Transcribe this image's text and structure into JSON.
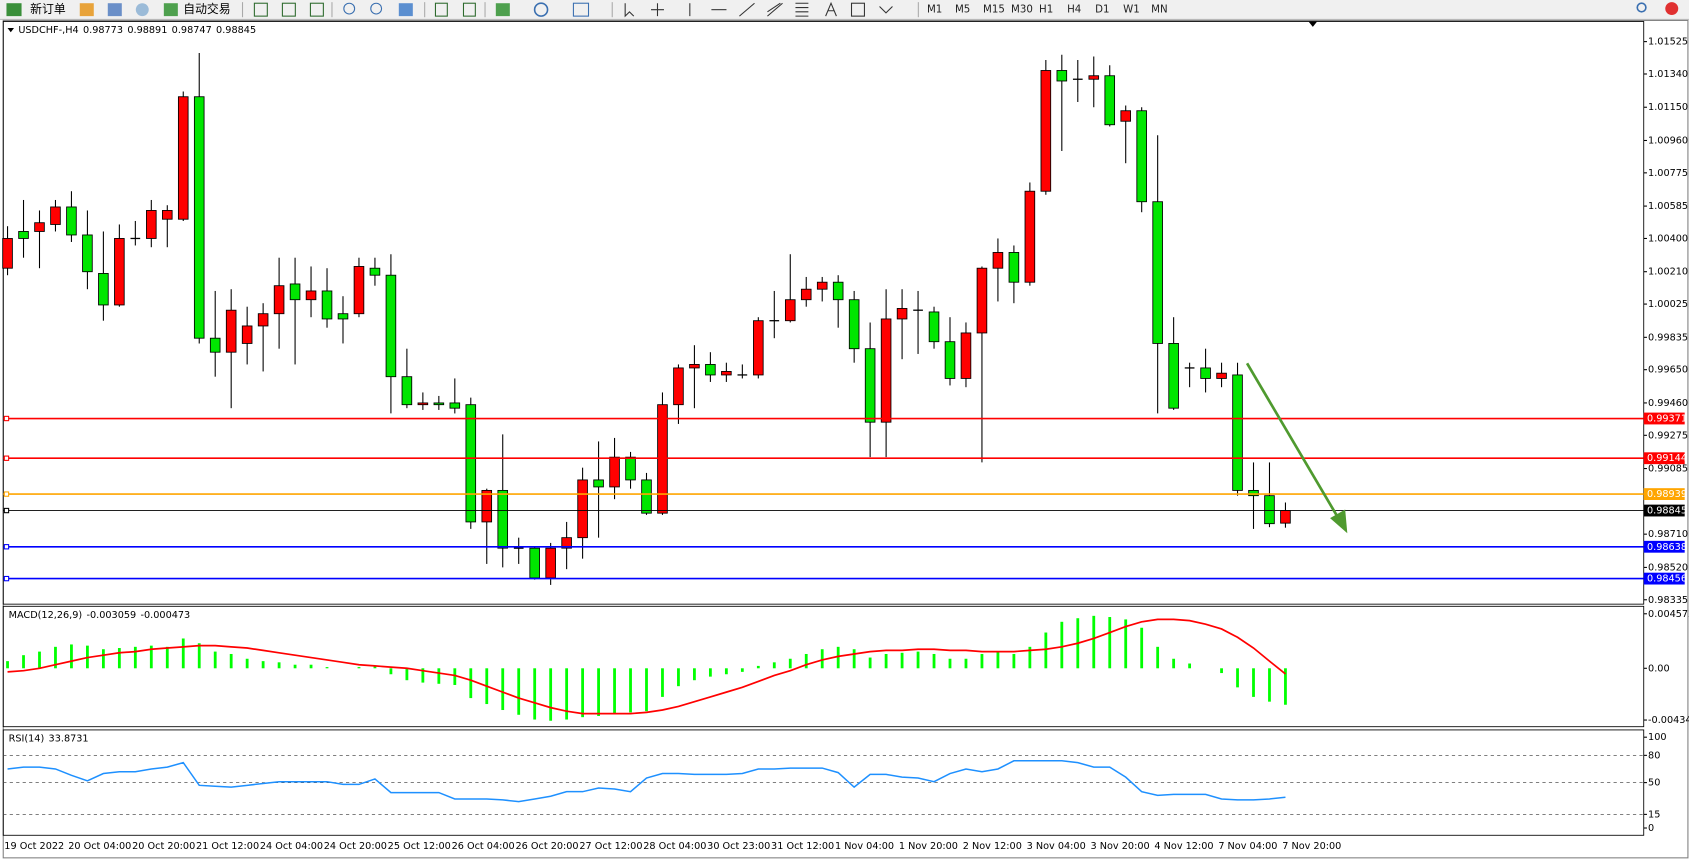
{
  "toolbar": {
    "new_order": "新订单",
    "auto_trading": "自动交易",
    "timeframes": [
      "M1",
      "M5",
      "M15",
      "M30",
      "H1",
      "H4",
      "D1",
      "W1",
      "MN"
    ]
  },
  "chart_data": [
    {
      "type": "candlestick",
      "title": "USDCHF-,H4",
      "up_color": "#ff0000",
      "down_color": "#00e600",
      "categories": [
        "19 Oct 2022",
        null,
        null,
        null,
        "20 Oct 04:00",
        null,
        null,
        null,
        "20 Oct 20:00",
        null,
        null,
        null,
        "21 Oct 12:00",
        null,
        null,
        null,
        "24 Oct 04:00",
        null,
        null,
        null,
        "24 Oct 20:00",
        null,
        null,
        null,
        "25 Oct 12:00",
        null,
        null,
        null,
        "26 Oct 04:00",
        null,
        null,
        null,
        "26 Oct 20:00",
        null,
        null,
        null,
        "27 Oct 12:00",
        null,
        null,
        null,
        "28 Oct 04:00",
        null,
        null,
        null,
        "30 Oct 23:00",
        null,
        null,
        null,
        "31 Oct 12:00",
        null,
        null,
        null,
        "1 Nov 04:00",
        null,
        null,
        null,
        "1 Nov 20:00",
        null,
        null,
        null,
        "2 Nov 12:00",
        null,
        null,
        null,
        "3 Nov 04:00",
        null,
        null,
        null,
        "3 Nov 20:00",
        null,
        null,
        null,
        "4 Nov 12:00",
        null,
        null,
        null,
        "7 Nov 04:00",
        null,
        null,
        null,
        "7 Nov 20:00"
      ],
      "open": [
        1.0023,
        1.0044,
        1.0044,
        1.0048,
        1.0058,
        1.0042,
        1.002,
        1.0002,
        1.004,
        1.004,
        1.0051,
        1.0051,
        1.0121,
        0.9983,
        0.9975,
        0.998,
        0.999,
        0.9997,
        1.0014,
        1.0005,
        1.001,
        0.9997,
        0.9997,
        1.0023,
        1.0019,
        0.9961,
        0.9945,
        0.9946,
        0.9946,
        0.9945,
        0.9878,
        0.9896,
        0.9863,
        0.9863,
        0.9846,
        0.9863,
        0.9869,
        0.9902,
        0.9898,
        0.9915,
        0.9902,
        0.9883,
        0.9945,
        0.9966,
        0.9968,
        0.9962,
        0.9962,
        0.9962,
        0.9993,
        0.9993,
        1.0005,
        1.0011,
        1.0015,
        1.0005,
        0.9977,
        0.9935,
        0.9994,
        0.9999,
        0.9998,
        0.9981,
        0.996,
        0.9986,
        1.0023,
        1.0032,
        1.0015,
        1.0067,
        1.0136,
        1.0131,
        1.0131,
        1.0133,
        1.0107,
        1.0113,
        1.0061,
        0.998,
        0.9966,
        0.9966,
        0.996,
        0.9962,
        0.9896,
        0.9893,
        0.98773
      ],
      "high": [
        1.0047,
        1.0062,
        1.0056,
        1.0062,
        1.0067,
        1.0056,
        1.0044,
        1.0048,
        1.005,
        1.0062,
        1.0059,
        1.0124,
        1.0146,
        1.001,
        1.0011,
        1.0001,
        1.0003,
        1.0029,
        1.0029,
        1.0024,
        1.0023,
        1.0007,
        1.0029,
        1.0029,
        1.0031,
        0.9977,
        0.9952,
        0.995,
        0.996,
        0.9949,
        0.9897,
        0.9928,
        0.9869,
        0.9864,
        0.9866,
        0.9878,
        0.9909,
        0.9924,
        0.9926,
        0.9918,
        0.9906,
        0.9952,
        0.9968,
        0.9979,
        0.9975,
        0.9969,
        0.9968,
        0.9995,
        1.001,
        1.0031,
        1.0018,
        1.0018,
        1.0019,
        1.001,
        0.9992,
        1.0011,
        1.0011,
        1.001,
        1.0001,
        0.9995,
        0.9992,
        1.0024,
        1.004,
        1.0036,
        1.0072,
        1.0142,
        1.0145,
        1.0142,
        1.0144,
        1.0139,
        1.0116,
        1.0115,
        1.0099,
        0.9995,
        0.9969,
        0.9977,
        0.9969,
        0.9969,
        0.9912,
        0.9912,
        0.98891
      ],
      "low": [
        1.0019,
        1.0029,
        1.0023,
        1.0044,
        1.0038,
        1.0011,
        0.9993,
        1.0001,
        1.0036,
        1.0035,
        1.0035,
        1.005,
        0.998,
        0.9961,
        0.9943,
        0.9968,
        0.9964,
        0.9977,
        0.9968,
        0.9995,
        0.9989,
        0.998,
        0.9995,
        1.0013,
        0.994,
        0.9943,
        0.9942,
        0.9942,
        0.994,
        0.9874,
        0.9854,
        0.9852,
        0.9854,
        0.9845,
        0.9842,
        0.9851,
        0.9857,
        0.9869,
        0.9891,
        0.9897,
        0.9882,
        0.9882,
        0.9934,
        0.9943,
        0.9958,
        0.9958,
        0.996,
        0.996,
        0.9983,
        0.9992,
        1.0001,
        1.0004,
        0.9989,
        0.9969,
        0.9915,
        0.9915,
        0.9971,
        0.9974,
        0.9977,
        0.9956,
        0.9955,
        0.9912,
        1.0004,
        1.0003,
        1.0013,
        1.0065,
        1.009,
        1.0118,
        1.0115,
        1.0104,
        1.0083,
        1.0055,
        0.994,
        0.9942,
        0.9955,
        0.9952,
        0.9955,
        0.9893,
        0.9874,
        0.9875,
        0.98747
      ],
      "close": [
        1.004,
        1.004,
        1.0049,
        1.0058,
        1.0042,
        1.0021,
        1.0002,
        1.004,
        1.004,
        1.0056,
        1.0056,
        1.0121,
        0.9983,
        0.9975,
        0.9999,
        0.999,
        0.9997,
        1.0013,
        1.0005,
        1.001,
        0.9994,
        0.9994,
        1.0024,
        1.0019,
        0.9961,
        0.9945,
        0.9946,
        0.9945,
        0.9943,
        0.9878,
        0.9896,
        0.9863,
        0.9863,
        0.9846,
        0.9863,
        0.9869,
        0.9902,
        0.9898,
        0.9915,
        0.9902,
        0.9883,
        0.9945,
        0.9966,
        0.9968,
        0.9962,
        0.9964,
        0.9962,
        0.9993,
        0.9993,
        1.0005,
        1.0011,
        1.0015,
        1.0005,
        0.9977,
        0.9935,
        0.9994,
        1.0,
        0.9999,
        0.9981,
        0.996,
        0.9986,
        1.0023,
        1.0032,
        1.0015,
        1.0067,
        1.0136,
        1.013,
        1.0131,
        1.0133,
        1.0105,
        1.0113,
        1.0061,
        0.998,
        0.9943,
        0.9966,
        0.996,
        0.9963,
        0.9896,
        0.9893,
        0.9877,
        0.98845
      ],
      "levels": [
        {
          "value": 0.99371,
          "color": "#ff0000"
        },
        {
          "value": 0.99144,
          "color": "#ff0000"
        },
        {
          "value": 0.98939,
          "color": "#ffa500"
        },
        {
          "value": 0.98845,
          "color": "#000000"
        },
        {
          "value": 0.98638,
          "color": "#0000ff"
        },
        {
          "value": 0.98456,
          "color": "#0000ff"
        }
      ],
      "ylim": [
        0.9831,
        1.0164
      ],
      "yticks": [
        1.01525,
        {
          "value": 1.0134,
          "label": "1.01340"
        },
        {
          "value": 1.0115,
          "label": "1.01150"
        },
        {
          "value": 1.0096,
          "label": "1.00960"
        },
        1.00775,
        1.00585,
        {
          "value": 1.004,
          "label": "1.00400"
        },
        {
          "value": 1.0021,
          "label": "1.00210"
        },
        1.00025,
        0.99835,
        {
          "value": 0.9965,
          "label": "0.99650"
        },
        {
          "value": 0.9946,
          "label": "0.99460"
        },
        0.99275,
        0.99085,
        {
          "value": 0.9871,
          "label": "0.98710"
        },
        {
          "value": 0.9852,
          "label": "0.98520"
        },
        0.98335
      ]
    },
    {
      "type": "macd",
      "title": "MACD(12,26,9)",
      "series": [
        {
          "color": "#00ff00",
          "values": [
            0.0006,
            0.0011,
            0.0014,
            0.0018,
            0.002,
            0.0019,
            0.0016,
            0.0017,
            0.0018,
            0.0019,
            0.0018,
            0.0025,
            0.0021,
            0.0014,
            0.0012,
            0.0008,
            0.0006,
            0.0005,
            0.0003,
            0.0003,
            0.0001,
            0,
            0.0001,
            0.0002,
            -0.0005,
            -0.001,
            -0.0012,
            -0.0013,
            -0.0014,
            -0.0025,
            -0.003,
            -0.0035,
            -0.0039,
            -0.0043,
            -0.0044,
            -0.0043,
            -0.0041,
            -0.004,
            -0.0038,
            -0.0037,
            -0.0036,
            -0.0024,
            -0.0015,
            -0.001,
            -0.0007,
            -0.0005,
            -0.0003,
            0.0002,
            0.0005,
            0.0008,
            0.0012,
            0.0016,
            0.0018,
            0.0016,
            0.0009,
            0.0012,
            0.0013,
            0.0014,
            0.0012,
            0.0008,
            0.0008,
            0.0012,
            0.0014,
            0.0012,
            0.0018,
            0.003,
            0.0039,
            0.0042,
            0.0044,
            0.0043,
            0.0041,
            0.0034,
            0.0018,
            0.0008,
            0.0004,
            0,
            -0.0004,
            -0.0016,
            -0.0024,
            -0.0028,
            -0.003059
          ]
        },
        {
          "color": "#ff0000",
          "values": [
            -0.0003,
            -0.0002,
            0,
            0.0003,
            0.0006,
            0.0009,
            0.0011,
            0.0013,
            0.0014,
            0.0016,
            0.0017,
            0.0018,
            0.0019,
            0.0019,
            0.0018,
            0.0017,
            0.0015,
            0.0013,
            0.0011,
            0.0009,
            0.0007,
            0.0005,
            0.0003,
            0.0002,
            0.0001,
            0,
            -0.0002,
            -0.0004,
            -0.0006,
            -0.001,
            -0.0015,
            -0.002,
            -0.0025,
            -0.0029,
            -0.0033,
            -0.0036,
            -0.0038,
            -0.0038,
            -0.0038,
            -0.0038,
            -0.0037,
            -0.0035,
            -0.0032,
            -0.0028,
            -0.0024,
            -0.002,
            -0.0016,
            -0.0011,
            -0.0006,
            -0.0002,
            0.0003,
            0.0007,
            0.001,
            0.0012,
            0.0014,
            0.0015,
            0.0015,
            0.0016,
            0.0016,
            0.0015,
            0.0015,
            0.0014,
            0.0014,
            0.0014,
            0.0015,
            0.0016,
            0.0018,
            0.0021,
            0.0025,
            0.003,
            0.0035,
            0.0039,
            0.0041,
            0.0041,
            0.004,
            0.0037,
            0.0033,
            0.0026,
            0.0017,
            0.0006,
            -0.000473
          ]
        }
      ],
      "ylim": [
        -0.0049,
        0.0052
      ],
      "yticks": [
        0.004572,
        {
          "value": 0,
          "label": "0.00"
        },
        -0.004341
      ]
    },
    {
      "type": "line",
      "title": "RSI(14)",
      "color": "#1e90ff",
      "values": [
        65,
        67,
        67,
        65,
        58,
        52,
        60,
        62,
        62,
        65,
        67,
        72,
        47,
        46,
        45,
        47,
        49,
        51,
        51,
        51,
        51,
        48,
        48,
        54,
        39,
        39,
        39,
        39,
        32,
        32,
        32,
        31,
        29,
        32,
        35,
        40,
        40,
        44,
        43,
        40,
        55,
        60,
        60,
        59,
        59,
        59,
        60,
        65,
        65,
        66,
        66,
        66,
        61,
        45,
        59,
        59,
        56,
        55,
        51,
        60,
        65,
        62,
        65,
        74,
        74,
        74,
        74,
        72,
        67,
        67,
        56,
        40,
        36,
        37,
        37,
        37,
        32,
        31,
        31,
        32,
        33.8731
      ],
      "levels": [
        80,
        50,
        15
      ],
      "ylim": [
        -8,
        108
      ],
      "yticks": [
        100,
        80,
        50,
        15,
        0
      ]
    }
  ]
}
